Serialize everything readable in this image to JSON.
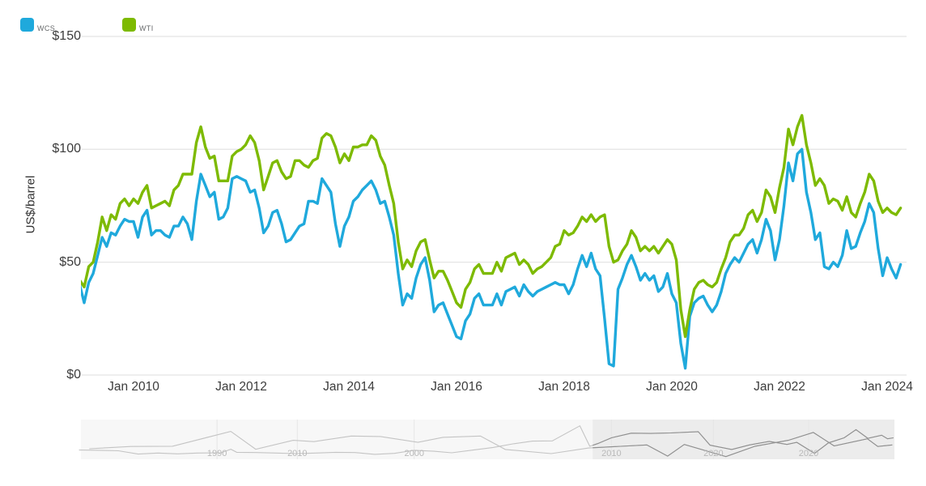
{
  "legend": [
    {
      "label": "WCS",
      "color": "#1fa9dc"
    },
    {
      "label": "WTI",
      "color": "#7dba00"
    }
  ],
  "chart_data": {
    "type": "line",
    "title": "",
    "xlabel": "",
    "ylabel": "US$/barrel",
    "ylim": [
      0,
      150
    ],
    "grid": "horizontal",
    "legend_position": "top-left",
    "yticks": [
      {
        "label": "$0",
        "value": 0
      },
      {
        "label": "$50",
        "value": 50
      },
      {
        "label": "$100",
        "value": 100
      },
      {
        "label": "$150",
        "value": 150
      }
    ],
    "xticks": [
      {
        "label": "Jan 2010",
        "year": 2010
      },
      {
        "label": "Jan 2012",
        "year": 2012
      },
      {
        "label": "Jan 2014",
        "year": 2014
      },
      {
        "label": "Jan 2016",
        "year": 2016
      },
      {
        "label": "Jan 2018",
        "year": 2018
      },
      {
        "label": "Jan 2020",
        "year": 2020
      },
      {
        "label": "Jan 2022",
        "year": 2022
      },
      {
        "label": "Jan 2024",
        "year": 2024
      }
    ],
    "x_range": [
      2009.0,
      2024.36
    ],
    "series": [
      {
        "name": "WCS",
        "color": "#1fa9dc",
        "start_year": 2009,
        "interval_months": 1,
        "values": [
          40,
          32,
          41,
          45,
          53,
          61,
          57,
          63,
          62,
          66,
          69,
          68,
          68,
          61,
          70,
          73,
          62,
          64,
          64,
          62,
          61,
          66,
          66,
          70,
          67,
          60,
          77,
          89,
          84,
          79,
          81,
          69,
          70,
          74,
          87,
          88,
          87,
          86,
          81,
          82,
          74,
          63,
          66,
          72,
          73,
          67,
          59,
          60,
          63,
          66,
          67,
          77,
          77,
          76,
          87,
          84,
          81,
          67,
          57,
          66,
          70,
          77,
          79,
          82,
          84,
          86,
          82,
          76,
          77,
          70,
          62,
          45,
          31,
          36,
          34,
          43,
          49,
          52,
          42,
          28,
          31,
          32,
          27,
          22,
          17,
          16,
          24,
          27,
          34,
          36,
          31,
          31,
          31,
          36,
          31,
          37,
          38,
          39,
          35,
          40,
          37,
          35,
          37,
          38,
          39,
          40,
          41,
          40,
          40,
          36,
          40,
          47,
          53,
          48,
          54,
          47,
          44,
          25,
          5,
          4,
          38,
          43,
          49,
          53,
          48,
          42,
          45,
          42,
          44,
          37,
          39,
          45,
          36,
          32,
          14,
          3,
          26,
          32,
          34,
          35,
          31,
          28,
          31,
          37,
          45,
          49,
          52,
          50,
          54,
          58,
          60,
          54,
          60,
          69,
          64,
          51,
          60,
          75,
          94,
          86,
          98,
          100,
          81,
          72,
          60,
          63,
          48,
          47,
          50,
          48,
          53,
          64,
          56,
          57,
          63,
          68,
          76,
          72,
          56,
          44,
          52,
          47,
          43,
          49
        ]
      },
      {
        "name": "WTI",
        "color": "#7dba00",
        "start_year": 2009,
        "interval_months": 1,
        "values": [
          42,
          39,
          48,
          50,
          59,
          70,
          64,
          71,
          69,
          76,
          78,
          75,
          78,
          76,
          81,
          84,
          74,
          75,
          76,
          77,
          75,
          82,
          84,
          89,
          89,
          89,
          103,
          110,
          101,
          96,
          97,
          86,
          86,
          86,
          97,
          99,
          100,
          102,
          106,
          103,
          95,
          82,
          88,
          94,
          95,
          90,
          87,
          88,
          95,
          95,
          93,
          92,
          95,
          96,
          105,
          107,
          106,
          101,
          94,
          98,
          95,
          101,
          101,
          102,
          102,
          106,
          104,
          97,
          93,
          84,
          76,
          59,
          47,
          51,
          48,
          55,
          59,
          60,
          51,
          43,
          46,
          46,
          42,
          37,
          32,
          30,
          38,
          41,
          47,
          49,
          45,
          45,
          45,
          50,
          46,
          52,
          53,
          54,
          49,
          51,
          49,
          45,
          47,
          48,
          50,
          52,
          57,
          58,
          64,
          62,
          63,
          66,
          70,
          68,
          71,
          68,
          70,
          71,
          57,
          50,
          51,
          55,
          58,
          64,
          61,
          55,
          57,
          55,
          57,
          54,
          57,
          60,
          58,
          51,
          29,
          17,
          29,
          38,
          41,
          42,
          40,
          39,
          41,
          47,
          52,
          59,
          62,
          62,
          65,
          71,
          73,
          68,
          72,
          82,
          79,
          72,
          83,
          92,
          109,
          102,
          110,
          115,
          102,
          94,
          84,
          87,
          84,
          76,
          78,
          77,
          73,
          79,
          72,
          70,
          76,
          81,
          89,
          86,
          77,
          72,
          74,
          72,
          71,
          74
        ]
      }
    ],
    "navigator": {
      "ymax": 140,
      "axes": [
        {
          "name": "wti-history",
          "range": [
            1983.1,
            2024.35
          ],
          "ticks": [
            {
              "label": "1990",
              "year": 1990
            },
            {
              "label": "2000",
              "year": 2000
            },
            {
              "label": "2010",
              "year": 2010
            },
            {
              "label": "2020",
              "year": 2020
            }
          ]
        },
        {
          "name": "wcs-history",
          "range": [
            2004.8,
            2024.35
          ],
          "ticks": [
            {
              "label": "2010",
              "year": 2010
            },
            {
              "label": "2020",
              "year": 2020
            }
          ]
        }
      ],
      "series": [
        {
          "name": "WTI",
          "axis": 0,
          "points": [
            [
              1983,
              30
            ],
            [
              1984,
              29
            ],
            [
              1985,
              27
            ],
            [
              1986,
              14
            ],
            [
              1987,
              18
            ],
            [
              1988,
              15
            ],
            [
              1989,
              18
            ],
            [
              1990.2,
              19
            ],
            [
              1990.7,
              33
            ],
            [
              1991,
              21
            ],
            [
              1992,
              20
            ],
            [
              1993,
              18
            ],
            [
              1994,
              16
            ],
            [
              1995,
              18
            ],
            [
              1996,
              21
            ],
            [
              1997,
              20
            ],
            [
              1998,
              13
            ],
            [
              1999,
              17
            ],
            [
              2000,
              29
            ],
            [
              2001,
              25
            ],
            [
              2001.9,
              19
            ],
            [
              2003,
              30
            ],
            [
              2004,
              40
            ],
            [
              2005,
              54
            ],
            [
              2006,
              65
            ],
            [
              2007,
              66
            ],
            [
              2008.4,
              125
            ],
            [
              2008.9,
              45
            ],
            [
              2009.3,
              55
            ],
            [
              2010,
              78
            ],
            [
              2011,
              96
            ],
            [
              2012,
              95
            ],
            [
              2013,
              97
            ],
            [
              2014.4,
              102
            ],
            [
              2015,
              49
            ],
            [
              2016.1,
              32
            ],
            [
              2017,
              50
            ],
            [
              2018,
              64
            ],
            [
              2018.9,
              52
            ],
            [
              2019.4,
              60
            ],
            [
              2020.3,
              17
            ],
            [
              2021,
              58
            ],
            [
              2021.8,
              78
            ],
            [
              2022.4,
              110
            ],
            [
              2023,
              76
            ],
            [
              2023.7,
              88
            ],
            [
              2024,
              74
            ],
            [
              2024.3,
              78
            ]
          ]
        },
        {
          "name": "WCS",
          "axis": 1,
          "points": [
            [
              2005,
              35
            ],
            [
              2006,
              44
            ],
            [
              2007,
              45
            ],
            [
              2008.4,
              103
            ],
            [
              2009,
              33
            ],
            [
              2009.9,
              68
            ],
            [
              2010.4,
              63
            ],
            [
              2011.3,
              85
            ],
            [
              2012,
              83
            ],
            [
              2012.9,
              60
            ],
            [
              2013.5,
              80
            ],
            [
              2014.4,
              85
            ],
            [
              2015,
              32
            ],
            [
              2016.1,
              16
            ],
            [
              2017,
              38
            ],
            [
              2018.4,
              50
            ],
            [
              2018.9,
              6
            ],
            [
              2019.3,
              52
            ],
            [
              2020.3,
              4
            ],
            [
              2021,
              45
            ],
            [
              2021.8,
              68
            ],
            [
              2022.4,
              99
            ],
            [
              2022.9,
              46
            ],
            [
              2023.7,
              74
            ],
            [
              2023.95,
              44
            ],
            [
              2024.3,
              50
            ]
          ]
        }
      ],
      "selection": {
        "axis": 0,
        "from": 2009.05,
        "to": 2024.35
      }
    }
  }
}
